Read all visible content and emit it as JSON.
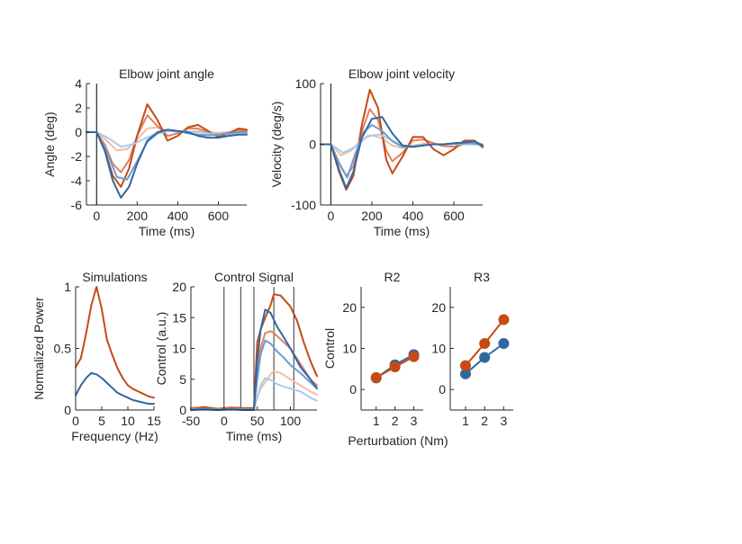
{
  "colors": {
    "orange_dark": "#c54a14",
    "orange_mid": "#e0835c",
    "orange_light": "#f1bda3",
    "blue_dark": "#3067a0",
    "blue_mid": "#6b9bd1",
    "blue_light": "#a9cbec",
    "axis": "#262626",
    "zeroline": "#000000"
  },
  "chart_data": [
    {
      "id": "angle",
      "type": "line",
      "title": "Elbow joint angle",
      "xlabel": "Time (ms)",
      "ylabel": "Angle (deg)",
      "xlim": [
        -50,
        740
      ],
      "ylim": [
        -6,
        4
      ],
      "xticks": [
        0,
        200,
        400,
        600
      ],
      "xtick_labels": [
        "0",
        "200",
        "400",
        "600"
      ],
      "yticks": [
        -6,
        -4,
        -2,
        0,
        2,
        4
      ],
      "ytick_labels": [
        "-6",
        "-4",
        "-2",
        "0",
        "2",
        "4"
      ],
      "vline": 0,
      "series": [
        {
          "color": "orange_light",
          "x": [
            -50,
            0,
            50,
            100,
            150,
            200,
            250,
            300,
            350,
            400,
            450,
            500,
            550,
            600,
            650,
            700,
            740
          ],
          "y": [
            0,
            0,
            -0.7,
            -1.5,
            -1.4,
            -0.6,
            0.3,
            0.4,
            0.15,
            0,
            0.05,
            0.1,
            0,
            -0.05,
            0,
            0.05,
            0
          ]
        },
        {
          "color": "orange_mid",
          "x": [
            -50,
            0,
            40,
            80,
            120,
            160,
            200,
            250,
            300,
            350,
            400,
            450,
            500,
            550,
            600,
            650,
            700,
            740
          ],
          "y": [
            0,
            0,
            -1,
            -2.6,
            -3.3,
            -2.3,
            -0.3,
            1.4,
            0.5,
            -0.3,
            -0.1,
            0.3,
            0.3,
            0,
            -0.2,
            -0.05,
            0.15,
            0.1
          ]
        },
        {
          "color": "orange_dark",
          "x": [
            -50,
            0,
            40,
            80,
            120,
            160,
            200,
            250,
            300,
            350,
            400,
            450,
            500,
            550,
            600,
            650,
            700,
            740
          ],
          "y": [
            0,
            0,
            -1.5,
            -3.6,
            -4.5,
            -3,
            -0.3,
            2.3,
            1,
            -0.7,
            -0.3,
            0.4,
            0.6,
            0.1,
            -0.4,
            -0.1,
            0.3,
            0.2
          ]
        },
        {
          "color": "blue_light",
          "x": [
            -50,
            0,
            60,
            120,
            180,
            240,
            300,
            350,
            400,
            450,
            500,
            550,
            600,
            650,
            700,
            740
          ],
          "y": [
            0,
            0,
            -0.5,
            -1.2,
            -1,
            -0.5,
            -0.1,
            0.05,
            0.1,
            0.05,
            0,
            -0.1,
            -0.15,
            -0.15,
            -0.1,
            -0.1
          ]
        },
        {
          "color": "blue_mid",
          "x": [
            -50,
            0,
            50,
            100,
            150,
            200,
            250,
            300,
            350,
            400,
            450,
            500,
            550,
            600,
            650,
            700,
            740
          ],
          "y": [
            0,
            0,
            -1.6,
            -3.7,
            -3.9,
            -2.4,
            -0.8,
            -0.1,
            0.2,
            0.1,
            -0.1,
            -0.2,
            -0.25,
            -0.2,
            -0.1,
            0,
            0
          ]
        },
        {
          "color": "blue_dark",
          "x": [
            -50,
            0,
            40,
            80,
            120,
            160,
            200,
            250,
            300,
            350,
            400,
            450,
            500,
            550,
            600,
            650,
            700,
            740
          ],
          "y": [
            0,
            0,
            -1.5,
            -4,
            -5.4,
            -4.5,
            -2.6,
            -0.7,
            0,
            0.2,
            0.1,
            0,
            -0.3,
            -0.45,
            -0.45,
            -0.3,
            -0.2,
            -0.2
          ]
        }
      ]
    },
    {
      "id": "velocity",
      "type": "line",
      "title": "Elbow joint velocity",
      "xlabel": "Time (ms)",
      "ylabel": "Velocity (deg/s)",
      "xlim": [
        -50,
        740
      ],
      "ylim": [
        -100,
        100
      ],
      "xticks": [
        0,
        200,
        400,
        600
      ],
      "xtick_labels": [
        "0",
        "200",
        "400",
        "600"
      ],
      "yticks": [
        -100,
        0,
        100
      ],
      "ytick_labels": [
        "-100",
        "0",
        "100"
      ],
      "vline": 0,
      "series": [
        {
          "color": "orange_light",
          "x": [
            -50,
            0,
            50,
            100,
            150,
            200,
            250,
            300,
            350,
            400,
            450,
            500,
            550,
            600,
            650,
            700,
            740
          ],
          "y": [
            0,
            0,
            -18,
            -10,
            8,
            15,
            10,
            -2,
            -6,
            -2,
            1,
            0,
            0,
            1,
            0,
            0,
            0
          ]
        },
        {
          "color": "orange_mid",
          "x": [
            -50,
            0,
            40,
            75,
            110,
            150,
            190,
            230,
            270,
            300,
            350,
            400,
            450,
            500,
            550,
            600,
            650,
            700,
            740
          ],
          "y": [
            0,
            0,
            -30,
            -52,
            -36,
            20,
            58,
            40,
            -10,
            -28,
            -14,
            6,
            8,
            2,
            -3,
            -4,
            0,
            3,
            0
          ]
        },
        {
          "color": "orange_dark",
          "x": [
            -50,
            0,
            40,
            75,
            110,
            150,
            190,
            230,
            270,
            300,
            350,
            400,
            450,
            500,
            550,
            600,
            650,
            700,
            740
          ],
          "y": [
            0,
            0,
            -45,
            -75,
            -52,
            30,
            90,
            60,
            -25,
            -48,
            -20,
            12,
            12,
            -8,
            -18,
            -8,
            6,
            6,
            -5
          ]
        },
        {
          "color": "blue_light",
          "x": [
            -50,
            0,
            60,
            120,
            180,
            240,
            300,
            350,
            400,
            450,
            500,
            550,
            600,
            650,
            700,
            740
          ],
          "y": [
            0,
            0,
            -14,
            -4,
            14,
            16,
            6,
            -2,
            -3,
            -1,
            0,
            0,
            0,
            0,
            0,
            0
          ]
        },
        {
          "color": "blue_mid",
          "x": [
            -50,
            0,
            40,
            80,
            120,
            160,
            200,
            250,
            300,
            350,
            400,
            450,
            500,
            550,
            600,
            650,
            700,
            740
          ],
          "y": [
            0,
            0,
            -32,
            -55,
            -15,
            20,
            32,
            22,
            5,
            -4,
            -4,
            -2,
            0,
            0,
            1,
            2,
            1,
            -2
          ]
        },
        {
          "color": "blue_dark",
          "x": [
            -50,
            0,
            40,
            75,
            110,
            150,
            200,
            250,
            300,
            350,
            400,
            450,
            500,
            550,
            600,
            650,
            700,
            740
          ],
          "y": [
            0,
            0,
            -42,
            -72,
            -45,
            10,
            42,
            45,
            18,
            -2,
            -4,
            -2,
            0,
            0,
            2,
            3,
            5,
            -2
          ]
        }
      ]
    },
    {
      "id": "simulations",
      "type": "line",
      "title": "Simulations",
      "xlabel": "Frequency (Hz)",
      "ylabel": "Normalized Power",
      "xlim": [
        0,
        15
      ],
      "ylim": [
        0,
        1
      ],
      "xticks": [
        0,
        5,
        10,
        15
      ],
      "xtick_labels": [
        "0",
        "5",
        "10",
        "15"
      ],
      "yticks": [
        0,
        0.5,
        1
      ],
      "ytick_labels": [
        "0",
        "0.5",
        "1"
      ],
      "series": [
        {
          "color": "orange_dark",
          "x": [
            0,
            1,
            2,
            3,
            4,
            5,
            6,
            7,
            8,
            9,
            10,
            11,
            12,
            13,
            14,
            15
          ],
          "y": [
            0.35,
            0.42,
            0.62,
            0.85,
            1,
            0.82,
            0.57,
            0.45,
            0.34,
            0.26,
            0.2,
            0.17,
            0.15,
            0.13,
            0.11,
            0.1
          ]
        },
        {
          "color": "blue_dark",
          "x": [
            0,
            1,
            2,
            3,
            4,
            5,
            6,
            7,
            8,
            9,
            10,
            11,
            12,
            13,
            14,
            15
          ],
          "y": [
            0.12,
            0.2,
            0.26,
            0.3,
            0.29,
            0.26,
            0.22,
            0.18,
            0.14,
            0.12,
            0.1,
            0.08,
            0.07,
            0.06,
            0.05,
            0.05
          ]
        }
      ]
    },
    {
      "id": "control",
      "type": "line",
      "title": "Control Signal",
      "xlabel": "Time (ms)",
      "ylabel": "Control (a.u.)",
      "xlim": [
        -50,
        140
      ],
      "ylim": [
        0,
        20
      ],
      "xticks": [
        -50,
        0,
        50,
        100
      ],
      "xtick_labels": [
        "-50",
        "0",
        "50",
        "100"
      ],
      "yticks": [
        0,
        5,
        10,
        15,
        20
      ],
      "ytick_labels": [
        "0",
        "5",
        "10",
        "15",
        "20"
      ],
      "vlines": [
        0,
        25,
        45,
        75,
        105
      ],
      "series": [
        {
          "color": "orange_light",
          "x": [
            -50,
            -30,
            -10,
            10,
            30,
            45,
            50,
            55,
            62,
            70,
            75,
            85,
            100,
            115,
            130,
            140
          ],
          "y": [
            0.3,
            0.4,
            0.2,
            0.3,
            0.2,
            0.2,
            2,
            3.5,
            4.5,
            5.8,
            6.3,
            6,
            5,
            4,
            3,
            2.5
          ]
        },
        {
          "color": "orange_mid",
          "x": [
            -50,
            -30,
            -10,
            10,
            30,
            45,
            50,
            55,
            62,
            70,
            75,
            85,
            100,
            115,
            130,
            140
          ],
          "y": [
            0.3,
            0.4,
            0.2,
            0.3,
            0.2,
            0.2,
            6,
            10,
            12.5,
            12.8,
            12.5,
            11.5,
            10,
            7.5,
            5,
            4
          ]
        },
        {
          "color": "orange_dark",
          "x": [
            -50,
            -30,
            -10,
            10,
            30,
            45,
            50,
            55,
            62,
            70,
            75,
            85,
            100,
            110,
            120,
            130,
            140
          ],
          "y": [
            0.2,
            0.5,
            0.2,
            0.4,
            0.3,
            0.3,
            11,
            13,
            15,
            17,
            18.8,
            18.6,
            16.8,
            14.5,
            11,
            8,
            5.5
          ]
        },
        {
          "color": "blue_light",
          "x": [
            -50,
            -30,
            -10,
            10,
            30,
            45,
            50,
            55,
            62,
            70,
            80,
            90,
            100,
            115,
            130,
            140
          ],
          "y": [
            0.1,
            0.2,
            0.1,
            0.2,
            0.1,
            0.1,
            2,
            4,
            5.2,
            4.9,
            4.2,
            3.8,
            3.5,
            3,
            2,
            1.5
          ]
        },
        {
          "color": "blue_mid",
          "x": [
            -50,
            -30,
            -10,
            10,
            30,
            45,
            50,
            55,
            62,
            70,
            80,
            90,
            100,
            115,
            130,
            140
          ],
          "y": [
            0.1,
            0.2,
            0.1,
            0.2,
            0.1,
            0.1,
            5,
            9,
            11.3,
            10.8,
            9.5,
            8.5,
            7.3,
            6,
            4.5,
            3.5
          ]
        },
        {
          "color": "blue_dark",
          "x": [
            -50,
            -30,
            -10,
            10,
            30,
            45,
            50,
            55,
            62,
            70,
            80,
            90,
            100,
            115,
            130,
            140
          ],
          "y": [
            0,
            0.1,
            0,
            0.1,
            0,
            0,
            8,
            13,
            16.3,
            15.8,
            13.5,
            11.8,
            10,
            7,
            5,
            3.5
          ]
        }
      ]
    },
    {
      "id": "r2",
      "type": "line",
      "title": "R2",
      "xlabel": "",
      "ylabel": "Control",
      "xlim": [
        0.2,
        3.5
      ],
      "ylim": [
        -5,
        25
      ],
      "xticks": [
        1,
        2,
        3
      ],
      "xtick_labels": [
        "1",
        "2",
        "3"
      ],
      "yticks": [
        0,
        10,
        20
      ],
      "ytick_labels": [
        "0",
        "10",
        "20"
      ],
      "markers": true,
      "series": [
        {
          "color": "blue_dark",
          "x": [
            1,
            2,
            3
          ],
          "y": [
            2.8,
            6,
            8.5
          ]
        },
        {
          "color": "orange_dark",
          "x": [
            1,
            2,
            3
          ],
          "y": [
            2.9,
            5.5,
            8
          ]
        }
      ]
    },
    {
      "id": "r3",
      "type": "line",
      "title": "R3",
      "xlabel": "",
      "ylabel": "",
      "xlim": [
        0.2,
        3.5
      ],
      "ylim": [
        -5,
        25
      ],
      "xticks": [
        1,
        2,
        3
      ],
      "xtick_labels": [
        "1",
        "2",
        "3"
      ],
      "yticks": [
        0,
        10,
        20
      ],
      "ytick_labels": [
        "0",
        "10",
        "20"
      ],
      "markers": true,
      "series": [
        {
          "color": "blue_dark",
          "x": [
            1,
            2,
            3
          ],
          "y": [
            3.8,
            7.8,
            11.2
          ]
        },
        {
          "color": "orange_dark",
          "x": [
            1,
            2,
            3
          ],
          "y": [
            5.8,
            11.2,
            17
          ]
        }
      ]
    }
  ],
  "shared_labels": {
    "perturbation": "Perturbation (Nm)"
  }
}
